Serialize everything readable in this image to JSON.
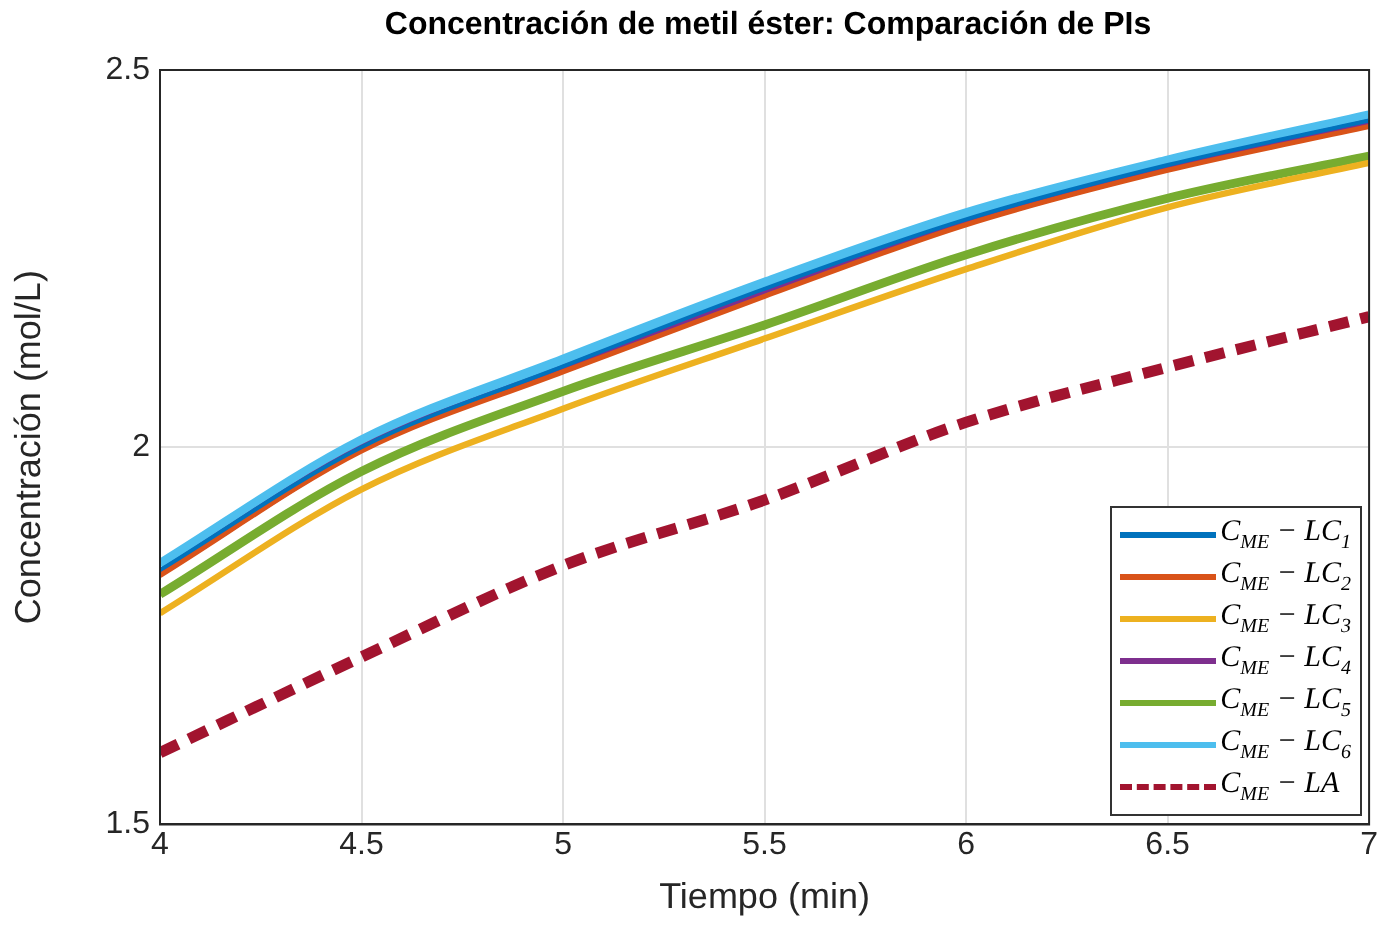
{
  "chart_data": {
    "type": "line",
    "title": "Concentración de metil éster: Comparación de PIs",
    "xlabel": "Tiempo (min)",
    "ylabel": "Concentración (mol/L)",
    "x": [
      4,
      4.5,
      5,
      5.5,
      6,
      6.5,
      7
    ],
    "series": [
      {
        "name": "C$_{ME}$ − LC$_{1}$",
        "color": "#0072bd",
        "values": [
          1.837,
          2.0,
          2.107,
          2.21,
          2.302,
          2.374,
          2.433
        ]
      },
      {
        "name": "C$_{ME}$ − LC$_{2}$",
        "color": "#d95319",
        "values": [
          1.83,
          1.995,
          2.1,
          2.2,
          2.295,
          2.367,
          2.425
        ]
      },
      {
        "name": "C$_{ME}$ − LC$_{3}$",
        "color": "#edb120",
        "values": [
          1.78,
          1.944,
          2.051,
          2.144,
          2.236,
          2.318,
          2.377
        ]
      },
      {
        "name": "C$_{ME}$ − LC$_{4}$",
        "color": "#7e2f8e",
        "values": [
          1.833,
          1.998,
          2.104,
          2.205,
          2.298,
          2.37,
          2.43
        ]
      },
      {
        "name": "C$_{ME}$ − LC$_{5}$",
        "color": "#77ac30",
        "values": [
          1.805,
          1.968,
          2.074,
          2.162,
          2.255,
          2.33,
          2.386
        ]
      },
      {
        "name": "C$_{ME}$ − LC$_{6}$",
        "color": "#4dbeee",
        "values": [
          1.845,
          2.009,
          2.116,
          2.218,
          2.31,
          2.38,
          2.44
        ]
      },
      {
        "name": "C$_{ME}$ − LA",
        "color": "#a2142f",
        "line_style": "dashed",
        "values": [
          1.595,
          1.722,
          1.843,
          1.93,
          2.033,
          2.106,
          2.173
        ]
      }
    ],
    "xlim": [
      4,
      7
    ],
    "xticks": [
      4,
      4.5,
      5,
      5.5,
      6,
      6.5,
      7
    ],
    "ylim": [
      1.5,
      2.5
    ],
    "yticks": [
      1.5,
      2,
      2.5
    ],
    "grid": true,
    "legend": "bottom right",
    "marker": "none",
    "line_style": "solid"
  }
}
